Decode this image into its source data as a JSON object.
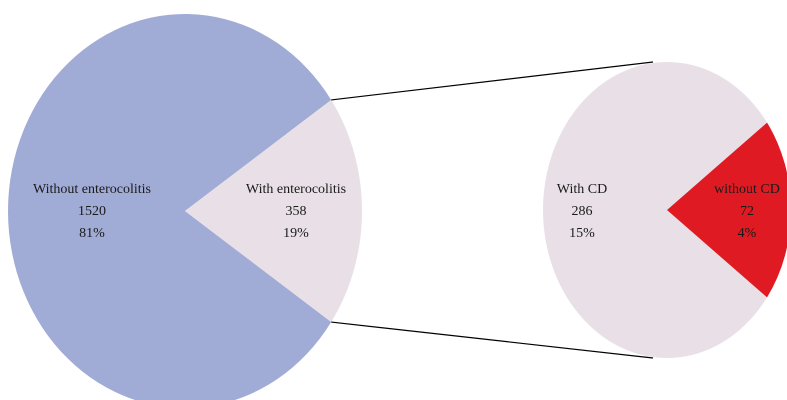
{
  "chart_data": {
    "type": "pie",
    "title": "",
    "charts": [
      {
        "name": "main",
        "slices": [
          {
            "label": "Without enterocolitis",
            "value": 1520,
            "percent": "81%",
            "color": "#a1acd6"
          },
          {
            "label": "With enterocolitis",
            "value": 358,
            "percent": "19%",
            "color": "#e8e0e6"
          }
        ]
      },
      {
        "name": "breakdown",
        "slices": [
          {
            "label": "With CD",
            "value": 286,
            "percent": "15%",
            "color": "#e8e0e6"
          },
          {
            "label": "without CD",
            "value": 72,
            "percent": "4%",
            "color": "#e01a22"
          }
        ]
      }
    ],
    "connector": {
      "from_slice": "With enterocolitis",
      "to_chart": "breakdown",
      "color": "#000000"
    },
    "legend": "none"
  }
}
